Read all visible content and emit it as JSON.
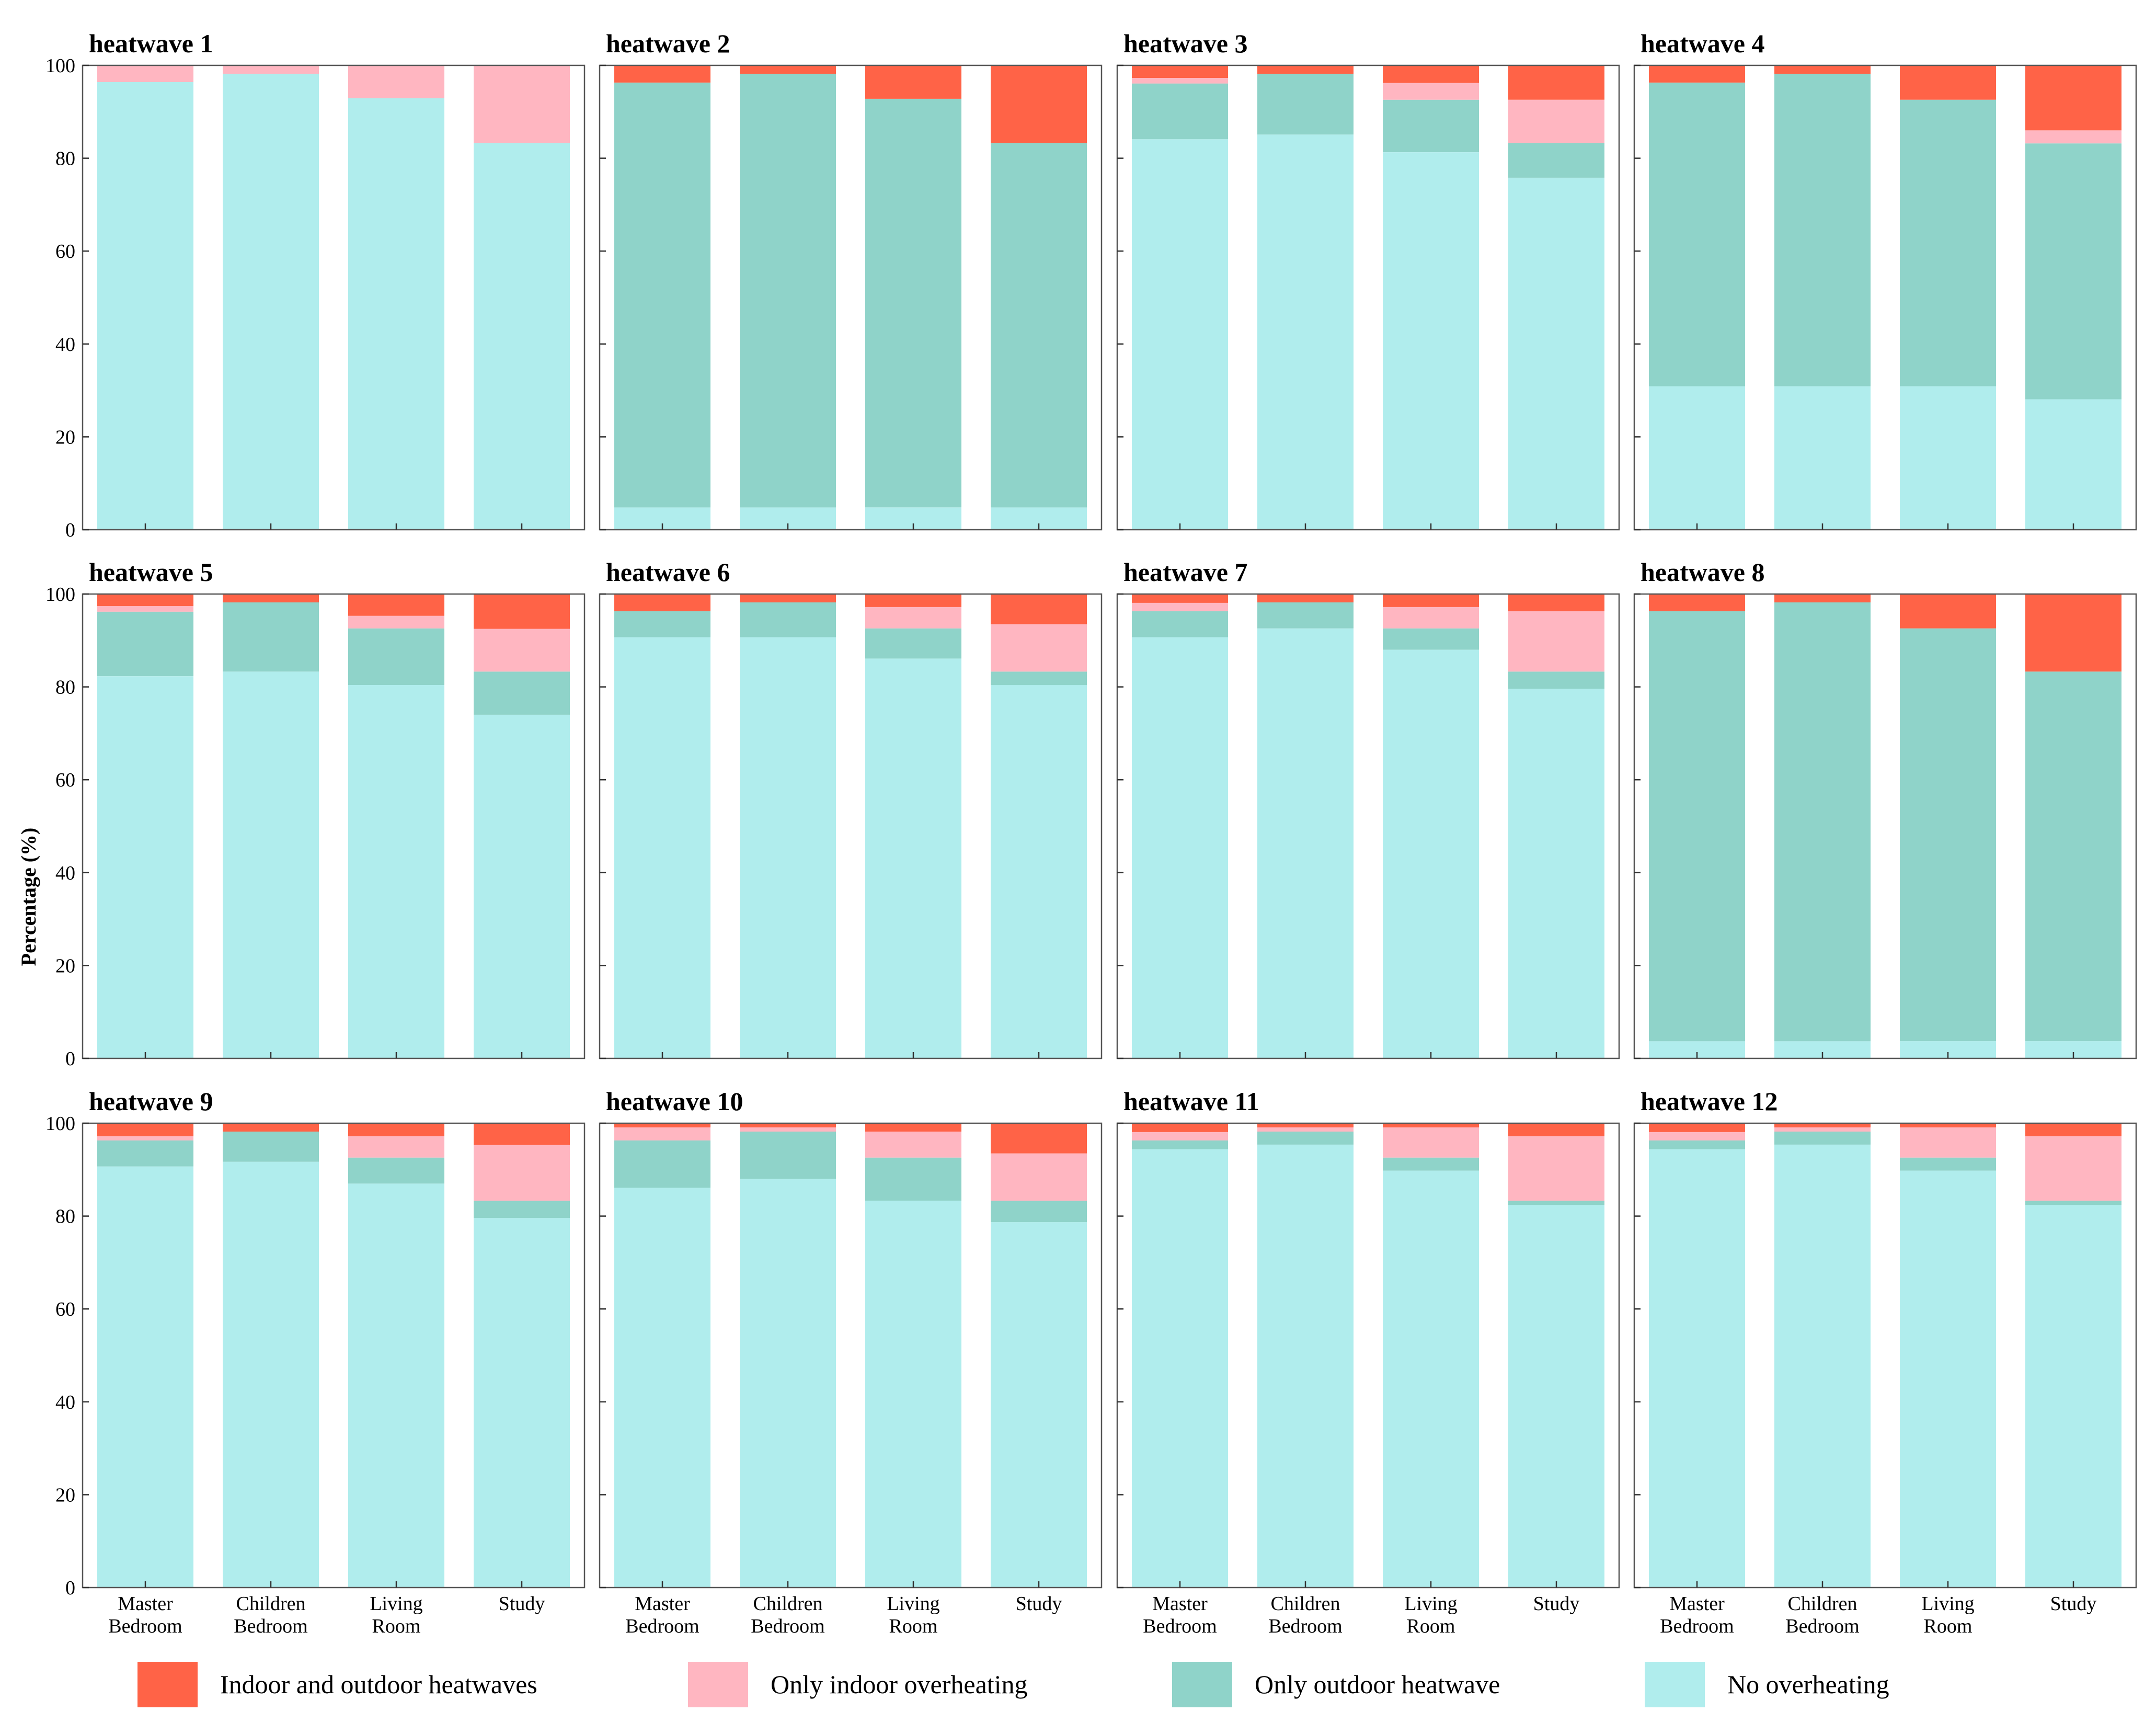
{
  "chart_data": {
    "type": "bar",
    "stacked": true,
    "ylabel": "Percentage (%)",
    "ylim": [
      0,
      100
    ],
    "yticks": [
      0,
      20,
      40,
      60,
      80,
      100
    ],
    "categories": [
      [
        "Master",
        "Bedroom"
      ],
      [
        "Children",
        "Bedroom"
      ],
      [
        "Living",
        "Room"
      ],
      [
        "Study"
      ]
    ],
    "legend": {
      "position": "bottom",
      "entries": [
        {
          "key": "both",
          "label": "Indoor and outdoor heatwaves",
          "color": "#ff6347"
        },
        {
          "key": "indoor",
          "label": "Only indoor overheating",
          "color": "#ffb6c1"
        },
        {
          "key": "outdoor",
          "label": "Only outdoor heatwave",
          "color": "#8fd3c9"
        },
        {
          "key": "none",
          "label": "No overheating",
          "color": "#b0eded"
        }
      ]
    },
    "stack_order": [
      "none",
      "outdoor",
      "indoor",
      "both"
    ],
    "panels": [
      {
        "title": "heatwave 1",
        "series": {
          "none": [
            96.4,
            98.2,
            92.9,
            83.3
          ],
          "outdoor": [
            0,
            0,
            0,
            0
          ],
          "indoor": [
            3.6,
            1.8,
            7.1,
            16.7
          ],
          "both": [
            0,
            0,
            0,
            0
          ]
        }
      },
      {
        "title": "heatwave 2",
        "series": {
          "none": [
            4.8,
            4.8,
            4.8,
            4.8
          ],
          "outdoor": [
            91.5,
            93.4,
            88.0,
            78.5
          ],
          "indoor": [
            0,
            0,
            0,
            0
          ],
          "both": [
            3.7,
            1.8,
            7.2,
            16.7
          ]
        }
      },
      {
        "title": "heatwave 3",
        "series": {
          "none": [
            84.1,
            85.1,
            81.3,
            75.8
          ],
          "outdoor": [
            12.0,
            13.1,
            11.3,
            7.5
          ],
          "indoor": [
            1.2,
            0,
            3.6,
            9.3
          ],
          "both": [
            2.7,
            1.8,
            3.8,
            7.4
          ]
        }
      },
      {
        "title": "heatwave 4",
        "series": {
          "none": [
            30.9,
            30.9,
            30.9,
            28.1
          ],
          "outdoor": [
            65.4,
            67.3,
            61.7,
            55.1
          ],
          "indoor": [
            0,
            0,
            0,
            2.8
          ],
          "both": [
            3.7,
            1.8,
            7.4,
            14.0
          ]
        }
      },
      {
        "title": "heatwave 5",
        "series": {
          "none": [
            82.3,
            83.3,
            80.4,
            74.0
          ],
          "outdoor": [
            13.9,
            14.9,
            12.2,
            9.3
          ],
          "indoor": [
            1.2,
            0,
            2.7,
            9.2
          ],
          "both": [
            2.6,
            1.8,
            4.7,
            7.5
          ]
        }
      },
      {
        "title": "heatwave 6",
        "series": {
          "none": [
            90.7,
            90.7,
            86.1,
            80.4
          ],
          "outdoor": [
            5.6,
            7.5,
            6.5,
            2.9
          ],
          "indoor": [
            0,
            0,
            4.6,
            10.2
          ],
          "both": [
            3.7,
            1.8,
            2.8,
            6.5
          ]
        }
      },
      {
        "title": "heatwave 7",
        "series": {
          "none": [
            90.7,
            92.6,
            88.0,
            79.6
          ],
          "outdoor": [
            5.6,
            5.6,
            4.6,
            3.7
          ],
          "indoor": [
            1.8,
            0,
            4.6,
            13.0
          ],
          "both": [
            1.9,
            1.8,
            2.8,
            3.7
          ]
        }
      },
      {
        "title": "heatwave 8",
        "series": {
          "none": [
            3.7,
            3.7,
            3.7,
            3.7
          ],
          "outdoor": [
            92.6,
            94.5,
            88.9,
            79.6
          ],
          "indoor": [
            0,
            0,
            0,
            0
          ],
          "both": [
            3.7,
            1.8,
            7.4,
            16.7
          ]
        }
      },
      {
        "title": "heatwave 9",
        "series": {
          "none": [
            90.7,
            91.7,
            87.0,
            79.6
          ],
          "outdoor": [
            5.6,
            6.5,
            5.6,
            3.7
          ],
          "indoor": [
            0.9,
            0,
            4.6,
            12.0
          ],
          "both": [
            2.8,
            1.8,
            2.8,
            4.7
          ]
        }
      },
      {
        "title": "heatwave 10",
        "series": {
          "none": [
            86.1,
            88.0,
            83.3,
            78.7
          ],
          "outdoor": [
            10.2,
            10.2,
            9.3,
            4.6
          ],
          "indoor": [
            2.8,
            0.9,
            5.6,
            10.2
          ],
          "both": [
            0.9,
            0.9,
            1.8,
            6.5
          ]
        }
      },
      {
        "title": "heatwave 11",
        "series": {
          "none": [
            94.4,
            95.4,
            89.8,
            82.4
          ],
          "outdoor": [
            1.9,
            2.8,
            2.8,
            0.9
          ],
          "indoor": [
            1.8,
            0.9,
            6.5,
            13.9
          ],
          "both": [
            1.9,
            0.9,
            0.9,
            2.8
          ]
        }
      },
      {
        "title": "heatwave 12",
        "series": {
          "none": [
            94.4,
            95.4,
            89.8,
            82.4
          ],
          "outdoor": [
            1.9,
            2.8,
            2.8,
            0.9
          ],
          "indoor": [
            1.8,
            0.9,
            6.5,
            13.9
          ],
          "both": [
            1.9,
            0.9,
            0.9,
            2.8
          ]
        }
      }
    ]
  }
}
